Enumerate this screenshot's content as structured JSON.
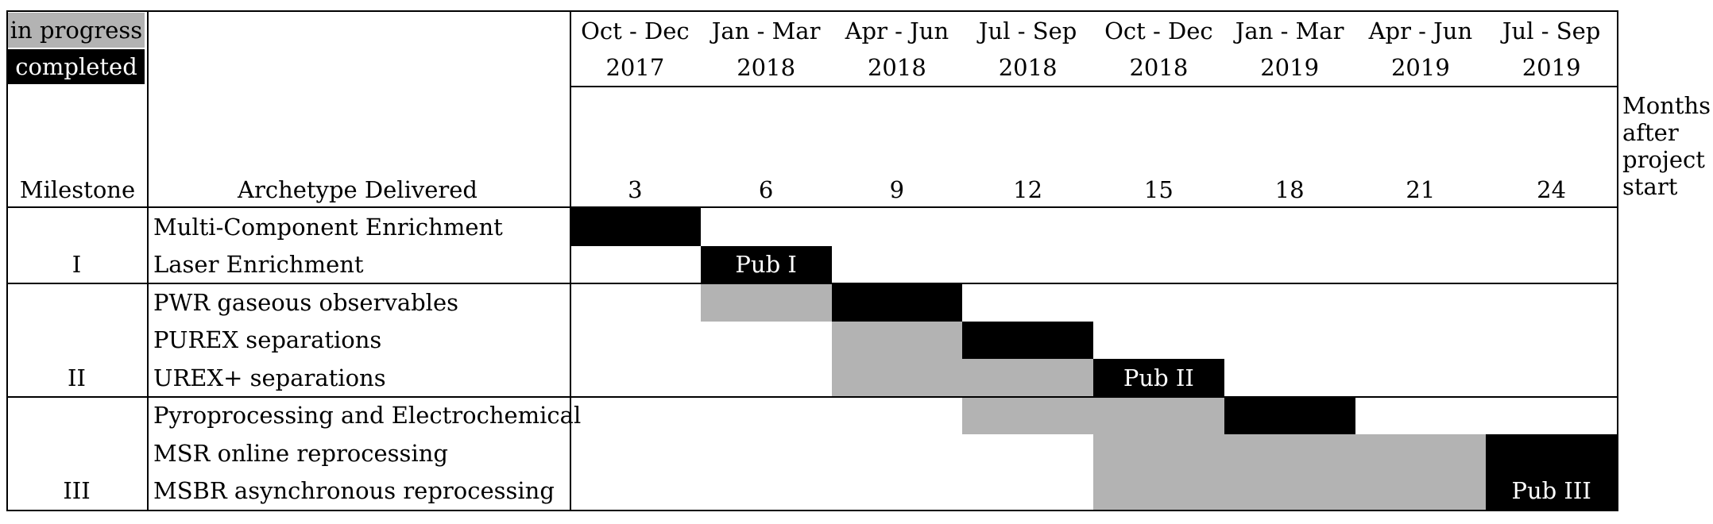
{
  "legend": {
    "in_progress": "in progress",
    "completed": "completed",
    "colors": {
      "in_progress": "#b3b3b3",
      "completed": "#000000"
    }
  },
  "header": {
    "milestone": "Milestone",
    "archetype": "Archetype Delivered",
    "months_note_lines": [
      "Months",
      "after",
      "project",
      "start"
    ],
    "columns": [
      {
        "quarter": "Oct - Dec",
        "year": "2017",
        "months": "3"
      },
      {
        "quarter": "Jan - Mar",
        "year": "2018",
        "months": "6"
      },
      {
        "quarter": "Apr - Jun",
        "year": "2018",
        "months": "9"
      },
      {
        "quarter": "Jul - Sep",
        "year": "2018",
        "months": "12"
      },
      {
        "quarter": "Oct - Dec",
        "year": "2018",
        "months": "15"
      },
      {
        "quarter": "Jan - Mar",
        "year": "2019",
        "months": "18"
      },
      {
        "quarter": "Apr - Jun",
        "year": "2019",
        "months": "21"
      },
      {
        "quarter": "Jul - Sep",
        "year": "2019",
        "months": "24"
      }
    ]
  },
  "milestones": [
    {
      "label": "I",
      "rows": [
        0,
        1
      ]
    },
    {
      "label": "II",
      "rows": [
        2,
        3,
        4
      ]
    },
    {
      "label": "III",
      "rows": [
        5,
        6,
        7
      ]
    }
  ],
  "rows": [
    {
      "name": "Multi-Component Enrichment"
    },
    {
      "name": "Laser Enrichment"
    },
    {
      "name": "PWR gaseous observables"
    },
    {
      "name": "PUREX separations"
    },
    {
      "name": "UREX+ separations"
    },
    {
      "name": "Pyroprocessing and Electrochemical"
    },
    {
      "name": "MSR online reprocessing"
    },
    {
      "name": "MSBR asynchronous reprocessing"
    }
  ],
  "bars": [
    {
      "row_start": 0,
      "row_end": 0,
      "col_start": 0,
      "col_end": 0,
      "status": "completed"
    },
    {
      "row_start": 1,
      "row_end": 1,
      "col_start": 1,
      "col_end": 1,
      "status": "completed",
      "label": "Pub I"
    },
    {
      "row_start": 2,
      "row_end": 2,
      "col_start": 1,
      "col_end": 1,
      "status": "in_progress"
    },
    {
      "row_start": 2,
      "row_end": 2,
      "col_start": 2,
      "col_end": 2,
      "status": "completed"
    },
    {
      "row_start": 3,
      "row_end": 4,
      "col_start": 2,
      "col_end": 2,
      "status": "in_progress"
    },
    {
      "row_start": 3,
      "row_end": 3,
      "col_start": 3,
      "col_end": 3,
      "status": "completed"
    },
    {
      "row_start": 4,
      "row_end": 4,
      "col_start": 3,
      "col_end": 3,
      "status": "in_progress"
    },
    {
      "row_start": 4,
      "row_end": 4,
      "col_start": 4,
      "col_end": 4,
      "status": "completed",
      "label": "Pub II"
    },
    {
      "row_start": 5,
      "row_end": 5,
      "col_start": 3,
      "col_end": 4,
      "status": "in_progress"
    },
    {
      "row_start": 5,
      "row_end": 5,
      "col_start": 5,
      "col_end": 5,
      "status": "completed"
    },
    {
      "row_start": 6,
      "row_end": 7,
      "col_start": 4,
      "col_end": 6,
      "status": "in_progress"
    },
    {
      "row_start": 6,
      "row_end": 7,
      "col_start": 7,
      "col_end": 7,
      "status": "completed",
      "label": "Pub III"
    }
  ]
}
